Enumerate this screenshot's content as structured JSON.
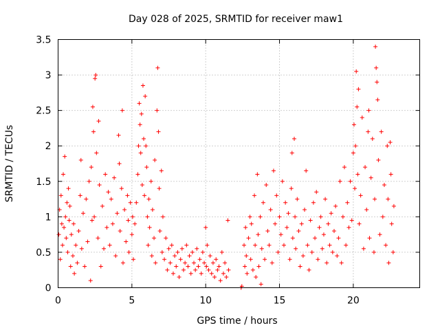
{
  "chart_data": {
    "type": "scatter",
    "title": "Day 028 of 2025, SRMTID for receiver maw1",
    "xlabel": "GPS time / hours",
    "ylabel": "SRMTID / TECUs",
    "xlim": [
      0,
      24.5
    ],
    "ylim": [
      0,
      3.5
    ],
    "xticks": [
      0,
      5,
      10,
      15,
      20
    ],
    "xtick_labels": [
      "0",
      "5",
      "10",
      "15",
      "20"
    ],
    "yticks": [
      0,
      0.5,
      1,
      1.5,
      2,
      2.5,
      3,
      3.5
    ],
    "ytick_labels": [
      "0",
      "0.5",
      "1",
      "1.5",
      "2",
      "2.5",
      "3",
      "3.5"
    ],
    "grid": true,
    "marker": "+",
    "color": "#ff0000",
    "series": [
      {
        "name": "SRMTID",
        "points": [
          [
            0.05,
            0.75
          ],
          [
            0.1,
            1.1
          ],
          [
            0.15,
            0.4
          ],
          [
            0.2,
            1.3
          ],
          [
            0.25,
            0.9
          ],
          [
            0.3,
            0.6
          ],
          [
            0.35,
            1.6
          ],
          [
            0.4,
            0.85
          ],
          [
            0.45,
            1.85
          ],
          [
            0.5,
            1.0
          ],
          [
            0.55,
            0.7
          ],
          [
            0.6,
            1.2
          ],
          [
            0.65,
            0.5
          ],
          [
            0.7,
            1.4
          ],
          [
            0.75,
            0.95
          ],
          [
            0.8,
            1.15
          ],
          [
            0.85,
            0.3
          ],
          [
            0.9,
            0.75
          ],
          [
            1.0,
            0.45
          ],
          [
            1.05,
            0.9
          ],
          [
            1.1,
            0.2
          ],
          [
            1.2,
            0.6
          ],
          [
            1.3,
            0.35
          ],
          [
            1.4,
            0.8
          ],
          [
            1.5,
            1.3
          ],
          [
            1.55,
            1.8
          ],
          [
            1.6,
            0.55
          ],
          [
            1.7,
            1.05
          ],
          [
            1.8,
            0.3
          ],
          [
            1.9,
            1.25
          ],
          [
            2.0,
            0.65
          ],
          [
            2.1,
            1.5
          ],
          [
            2.2,
            0.1
          ],
          [
            2.25,
            1.7
          ],
          [
            2.3,
            0.95
          ],
          [
            2.35,
            2.55
          ],
          [
            2.4,
            2.2
          ],
          [
            2.45,
            1.0
          ],
          [
            2.5,
            2.95
          ],
          [
            2.55,
            3.0
          ],
          [
            2.6,
            1.9
          ],
          [
            2.7,
            0.7
          ],
          [
            2.75,
            2.35
          ],
          [
            2.8,
            1.45
          ],
          [
            2.9,
            0.3
          ],
          [
            3.0,
            1.15
          ],
          [
            3.1,
            0.55
          ],
          [
            3.2,
            1.6
          ],
          [
            3.3,
            0.85
          ],
          [
            3.4,
            1.35
          ],
          [
            3.5,
            0.6
          ],
          [
            3.6,
            1.25
          ],
          [
            3.7,
            0.9
          ],
          [
            3.8,
            1.55
          ],
          [
            3.9,
            0.45
          ],
          [
            4.0,
            1.05
          ],
          [
            4.1,
            2.15
          ],
          [
            4.15,
            1.75
          ],
          [
            4.2,
            0.8
          ],
          [
            4.3,
            1.4
          ],
          [
            4.35,
            2.5
          ],
          [
            4.4,
            0.35
          ],
          [
            4.5,
            1.1
          ],
          [
            4.6,
            0.65
          ],
          [
            4.7,
            1.3
          ],
          [
            4.75,
            0.95
          ],
          [
            4.8,
            0.5
          ],
          [
            4.9,
            1.2
          ],
          [
            5.0,
            0.75
          ],
          [
            5.05,
            1.0
          ],
          [
            5.1,
            0.4
          ],
          [
            5.2,
            0.9
          ],
          [
            5.3,
            1.2
          ],
          [
            5.4,
            1.6
          ],
          [
            5.45,
            2.0
          ],
          [
            5.5,
            2.6
          ],
          [
            5.55,
            2.3
          ],
          [
            5.6,
            1.9
          ],
          [
            5.65,
            2.45
          ],
          [
            5.7,
            1.45
          ],
          [
            5.75,
            2.85
          ],
          [
            5.8,
            2.1
          ],
          [
            5.85,
            1.3
          ],
          [
            5.9,
            2.7
          ],
          [
            5.95,
            2.0
          ],
          [
            6.0,
            1.7
          ],
          [
            6.05,
            1.0
          ],
          [
            6.1,
            0.6
          ],
          [
            6.15,
            1.25
          ],
          [
            6.2,
            0.85
          ],
          [
            6.3,
            1.5
          ],
          [
            6.35,
            0.45
          ],
          [
            6.4,
            1.1
          ],
          [
            6.5,
            0.7
          ],
          [
            6.55,
            1.8
          ],
          [
            6.6,
            0.35
          ],
          [
            6.7,
            2.5
          ],
          [
            6.75,
            3.1
          ],
          [
            6.8,
            2.2
          ],
          [
            6.85,
            1.4
          ],
          [
            6.9,
            0.8
          ],
          [
            7.0,
            1.65
          ],
          [
            7.05,
            0.5
          ],
          [
            7.1,
            1.0
          ],
          [
            7.2,
            0.4
          ],
          [
            7.3,
            0.7
          ],
          [
            7.4,
            0.25
          ],
          [
            7.5,
            0.55
          ],
          [
            7.6,
            0.35
          ],
          [
            7.7,
            0.6
          ],
          [
            7.8,
            0.2
          ],
          [
            7.9,
            0.45
          ],
          [
            8.0,
            0.3
          ],
          [
            8.1,
            0.5
          ],
          [
            8.2,
            0.15
          ],
          [
            8.3,
            0.4
          ],
          [
            8.4,
            0.55
          ],
          [
            8.5,
            0.25
          ],
          [
            8.6,
            0.35
          ],
          [
            8.7,
            0.6
          ],
          [
            8.8,
            0.3
          ],
          [
            8.9,
            0.45
          ],
          [
            9.0,
            0.2
          ],
          [
            9.1,
            0.5
          ],
          [
            9.2,
            0.35
          ],
          [
            9.3,
            0.25
          ],
          [
            9.4,
            0.55
          ],
          [
            9.5,
            0.3
          ],
          [
            9.6,
            0.4
          ],
          [
            9.7,
            0.2
          ],
          [
            9.8,
            0.5
          ],
          [
            9.9,
            0.35
          ],
          [
            10.0,
            0.85
          ],
          [
            10.05,
            0.3
          ],
          [
            10.1,
            0.6
          ],
          [
            10.2,
            0.25
          ],
          [
            10.3,
            0.45
          ],
          [
            10.4,
            0.2
          ],
          [
            10.5,
            0.35
          ],
          [
            10.6,
            0.15
          ],
          [
            10.7,
            0.4
          ],
          [
            10.8,
            0.25
          ],
          [
            10.9,
            0.3
          ],
          [
            11.0,
            0.1
          ],
          [
            11.1,
            0.5
          ],
          [
            11.2,
            0.2
          ],
          [
            11.3,
            0.35
          ],
          [
            11.4,
            0.15
          ],
          [
            11.5,
            0.95
          ],
          [
            11.55,
            0.25
          ],
          [
            12.4,
            0.0
          ],
          [
            12.45,
            0.02
          ],
          [
            12.6,
            0.6
          ],
          [
            12.65,
            0.3
          ],
          [
            12.7,
            0.85
          ],
          [
            12.75,
            0.45
          ],
          [
            12.8,
            0.2
          ],
          [
            12.9,
            0.7
          ],
          [
            13.0,
            1.0
          ],
          [
            13.05,
            0.4
          ],
          [
            13.1,
            0.9
          ],
          [
            13.2,
            0.25
          ],
          [
            13.3,
            1.3
          ],
          [
            13.35,
            0.6
          ],
          [
            13.4,
            0.15
          ],
          [
            13.5,
            1.6
          ],
          [
            13.55,
            0.75
          ],
          [
            13.6,
            0.3
          ],
          [
            13.7,
            1.0
          ],
          [
            13.75,
            0.05
          ],
          [
            13.8,
            0.55
          ],
          [
            13.9,
            1.2
          ],
          [
            14.0,
            0.4
          ],
          [
            14.1,
            1.45
          ],
          [
            14.2,
            0.8
          ],
          [
            14.3,
            0.6
          ],
          [
            14.4,
            1.1
          ],
          [
            14.5,
            0.35
          ],
          [
            14.6,
            1.65
          ],
          [
            14.7,
            0.9
          ],
          [
            14.8,
            1.3
          ],
          [
            14.9,
            0.5
          ],
          [
            15.0,
            1.0
          ],
          [
            15.1,
            0.75
          ],
          [
            15.2,
            1.5
          ],
          [
            15.3,
            0.6
          ],
          [
            15.4,
            1.2
          ],
          [
            15.5,
            0.85
          ],
          [
            15.6,
            1.05
          ],
          [
            15.7,
            0.4
          ],
          [
            15.8,
            1.4
          ],
          [
            15.85,
            1.9
          ],
          [
            15.9,
            0.7
          ],
          [
            16.0,
            2.1
          ],
          [
            16.05,
            1.0
          ],
          [
            16.1,
            0.55
          ],
          [
            16.2,
            1.25
          ],
          [
            16.3,
            0.8
          ],
          [
            16.4,
            0.3
          ],
          [
            16.5,
            0.9
          ],
          [
            16.6,
            0.45
          ],
          [
            16.7,
            1.1
          ],
          [
            16.8,
            1.65
          ],
          [
            16.9,
            0.6
          ],
          [
            17.0,
            0.25
          ],
          [
            17.1,
            0.95
          ],
          [
            17.2,
            0.5
          ],
          [
            17.3,
            1.2
          ],
          [
            17.4,
            0.7
          ],
          [
            17.5,
            1.35
          ],
          [
            17.6,
            0.4
          ],
          [
            17.7,
            0.85
          ],
          [
            17.8,
            1.0
          ],
          [
            17.9,
            0.55
          ],
          [
            18.0,
            0.75
          ],
          [
            18.1,
            1.25
          ],
          [
            18.2,
            0.35
          ],
          [
            18.3,
            0.9
          ],
          [
            18.4,
            0.6
          ],
          [
            18.5,
            1.05
          ],
          [
            18.6,
            0.5
          ],
          [
            18.7,
            0.8
          ],
          [
            18.8,
            1.15
          ],
          [
            18.9,
            0.45
          ],
          [
            19.0,
            0.7
          ],
          [
            19.1,
            1.5
          ],
          [
            19.2,
            0.35
          ],
          [
            19.3,
            1.0
          ],
          [
            19.4,
            1.7
          ],
          [
            19.5,
            0.6
          ],
          [
            19.6,
            1.2
          ],
          [
            19.7,
            0.85
          ],
          [
            19.8,
            1.5
          ],
          [
            19.9,
            0.95
          ],
          [
            20.0,
            1.9
          ],
          [
            20.05,
            2.3
          ],
          [
            20.1,
            1.4
          ],
          [
            20.15,
            2.0
          ],
          [
            20.2,
            3.05
          ],
          [
            20.25,
            2.55
          ],
          [
            20.3,
            1.6
          ],
          [
            20.35,
            2.8
          ],
          [
            20.4,
            0.9
          ],
          [
            20.5,
            1.3
          ],
          [
            20.6,
            2.4
          ],
          [
            20.7,
            0.55
          ],
          [
            20.8,
            1.7
          ],
          [
            20.9,
            1.1
          ],
          [
            21.0,
            2.2
          ],
          [
            21.05,
            2.5
          ],
          [
            21.1,
            0.7
          ],
          [
            21.2,
            1.55
          ],
          [
            21.3,
            2.1
          ],
          [
            21.4,
            0.5
          ],
          [
            21.45,
            1.25
          ],
          [
            21.5,
            3.4
          ],
          [
            21.55,
            3.1
          ],
          [
            21.6,
            2.9
          ],
          [
            21.65,
            2.65
          ],
          [
            21.7,
            1.8
          ],
          [
            21.8,
            0.75
          ],
          [
            21.9,
            2.2
          ],
          [
            22.0,
            1.0
          ],
          [
            22.1,
            1.45
          ],
          [
            22.2,
            0.6
          ],
          [
            22.3,
            2.0
          ],
          [
            22.35,
            1.25
          ],
          [
            22.4,
            0.35
          ],
          [
            22.5,
            2.05
          ],
          [
            22.55,
            1.6
          ],
          [
            22.6,
            0.9
          ],
          [
            22.7,
            0.5
          ],
          [
            22.75,
            1.15
          ]
        ]
      }
    ]
  }
}
